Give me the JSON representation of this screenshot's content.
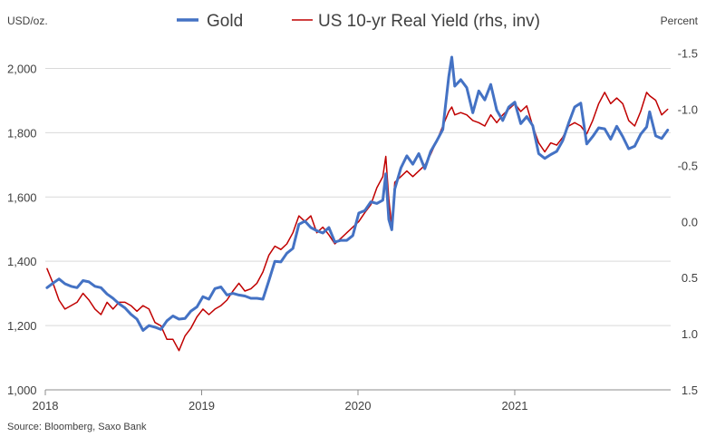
{
  "chart_data": {
    "type": "line",
    "title": "",
    "left_unit": "USD/oz.",
    "right_unit": "Percent",
    "source": "Source: Bloomberg, Saxo Bank",
    "x_ticks": [
      "2018",
      "2019",
      "2020",
      "2021"
    ],
    "y_left": {
      "ticks": [
        "1,000",
        "1,200",
        "1,400",
        "1,600",
        "1,800",
        "2,000"
      ],
      "tick_values": [
        1000,
        1200,
        1400,
        1600,
        1800,
        2000
      ],
      "ylim": [
        1000,
        2100
      ]
    },
    "y_right": {
      "ticks": [
        "-1.5",
        "-1.0",
        "-0.5",
        "0.0",
        "0.5",
        "1.0",
        "1.5"
      ],
      "tick_values": [
        -1.5,
        -1.0,
        -0.5,
        0.0,
        0.5,
        1.0,
        1.5
      ],
      "ylim": [
        -1.65,
        1.5
      ],
      "inverted": true
    },
    "xlim": [
      "2018-01-01",
      "2021-12-31"
    ],
    "grid": "horizontal",
    "legend_position": "top",
    "series": [
      {
        "name": "Gold",
        "axis": "left",
        "color": "#4472c4",
        "points": [
          [
            "2018-01-05",
            1318
          ],
          [
            "2018-01-19",
            1332
          ],
          [
            "2018-02-02",
            1345
          ],
          [
            "2018-02-16",
            1330
          ],
          [
            "2018-03-02",
            1322
          ],
          [
            "2018-03-16",
            1318
          ],
          [
            "2018-03-30",
            1340
          ],
          [
            "2018-04-13",
            1336
          ],
          [
            "2018-04-27",
            1322
          ],
          [
            "2018-05-11",
            1318
          ],
          [
            "2018-05-25",
            1298
          ],
          [
            "2018-06-08",
            1285
          ],
          [
            "2018-06-22",
            1268
          ],
          [
            "2018-07-06",
            1255
          ],
          [
            "2018-07-20",
            1235
          ],
          [
            "2018-08-03",
            1220
          ],
          [
            "2018-08-17",
            1185
          ],
          [
            "2018-08-31",
            1200
          ],
          [
            "2018-09-14",
            1195
          ],
          [
            "2018-09-28",
            1188
          ],
          [
            "2018-10-12",
            1215
          ],
          [
            "2018-10-26",
            1230
          ],
          [
            "2018-11-09",
            1220
          ],
          [
            "2018-11-23",
            1222
          ],
          [
            "2018-12-07",
            1245
          ],
          [
            "2018-12-21",
            1258
          ],
          [
            "2019-01-04",
            1290
          ],
          [
            "2019-01-18",
            1282
          ],
          [
            "2019-02-01",
            1315
          ],
          [
            "2019-02-15",
            1320
          ],
          [
            "2019-03-01",
            1295
          ],
          [
            "2019-03-15",
            1300
          ],
          [
            "2019-03-29",
            1295
          ],
          [
            "2019-04-12",
            1292
          ],
          [
            "2019-04-26",
            1285
          ],
          [
            "2019-05-10",
            1285
          ],
          [
            "2019-05-24",
            1282
          ],
          [
            "2019-06-07",
            1340
          ],
          [
            "2019-06-21",
            1400
          ],
          [
            "2019-07-05",
            1398
          ],
          [
            "2019-07-19",
            1425
          ],
          [
            "2019-08-02",
            1440
          ],
          [
            "2019-08-16",
            1515
          ],
          [
            "2019-08-30",
            1525
          ],
          [
            "2019-09-13",
            1505
          ],
          [
            "2019-09-27",
            1495
          ],
          [
            "2019-10-11",
            1488
          ],
          [
            "2019-10-25",
            1505
          ],
          [
            "2019-11-08",
            1460
          ],
          [
            "2019-11-22",
            1465
          ],
          [
            "2019-12-06",
            1465
          ],
          [
            "2019-12-20",
            1480
          ],
          [
            "2020-01-03",
            1550
          ],
          [
            "2020-01-17",
            1558
          ],
          [
            "2020-01-31",
            1585
          ],
          [
            "2020-02-14",
            1580
          ],
          [
            "2020-02-28",
            1590
          ],
          [
            "2020-03-06",
            1672
          ],
          [
            "2020-03-13",
            1530
          ],
          [
            "2020-03-20",
            1498
          ],
          [
            "2020-03-27",
            1625
          ],
          [
            "2020-04-10",
            1690
          ],
          [
            "2020-04-24",
            1728
          ],
          [
            "2020-05-08",
            1702
          ],
          [
            "2020-05-22",
            1735
          ],
          [
            "2020-06-05",
            1688
          ],
          [
            "2020-06-19",
            1742
          ],
          [
            "2020-07-03",
            1775
          ],
          [
            "2020-07-17",
            1810
          ],
          [
            "2020-07-31",
            1975
          ],
          [
            "2020-08-07",
            2035
          ],
          [
            "2020-08-14",
            1945
          ],
          [
            "2020-08-28",
            1965
          ],
          [
            "2020-09-11",
            1940
          ],
          [
            "2020-09-25",
            1862
          ],
          [
            "2020-10-09",
            1930
          ],
          [
            "2020-10-23",
            1902
          ],
          [
            "2020-11-06",
            1950
          ],
          [
            "2020-11-20",
            1870
          ],
          [
            "2020-12-04",
            1838
          ],
          [
            "2020-12-18",
            1880
          ],
          [
            "2021-01-01",
            1895
          ],
          [
            "2021-01-15",
            1828
          ],
          [
            "2021-01-29",
            1850
          ],
          [
            "2021-02-12",
            1822
          ],
          [
            "2021-02-26",
            1735
          ],
          [
            "2021-03-12",
            1720
          ],
          [
            "2021-03-26",
            1732
          ],
          [
            "2021-04-09",
            1742
          ],
          [
            "2021-04-23",
            1775
          ],
          [
            "2021-05-07",
            1830
          ],
          [
            "2021-05-21",
            1880
          ],
          [
            "2021-06-04",
            1892
          ],
          [
            "2021-06-18",
            1765
          ],
          [
            "2021-07-02",
            1788
          ],
          [
            "2021-07-16",
            1815
          ],
          [
            "2021-07-30",
            1812
          ],
          [
            "2021-08-13",
            1780
          ],
          [
            "2021-08-27",
            1820
          ],
          [
            "2021-09-10",
            1788
          ],
          [
            "2021-09-24",
            1750
          ],
          [
            "2021-10-08",
            1758
          ],
          [
            "2021-10-22",
            1795
          ],
          [
            "2021-11-05",
            1818
          ],
          [
            "2021-11-12",
            1865
          ],
          [
            "2021-11-26",
            1790
          ],
          [
            "2021-12-10",
            1782
          ],
          [
            "2021-12-24",
            1808
          ]
        ]
      },
      {
        "name": "US 10-yr Real Yield (rhs, inv)",
        "axis": "right",
        "color": "#c00000",
        "points": [
          [
            "2018-01-05",
            0.42
          ],
          [
            "2018-01-19",
            0.55
          ],
          [
            "2018-02-02",
            0.7
          ],
          [
            "2018-02-16",
            0.78
          ],
          [
            "2018-03-02",
            0.75
          ],
          [
            "2018-03-16",
            0.72
          ],
          [
            "2018-03-30",
            0.64
          ],
          [
            "2018-04-13",
            0.7
          ],
          [
            "2018-04-27",
            0.78
          ],
          [
            "2018-05-11",
            0.83
          ],
          [
            "2018-05-25",
            0.72
          ],
          [
            "2018-06-08",
            0.78
          ],
          [
            "2018-06-22",
            0.72
          ],
          [
            "2018-07-06",
            0.72
          ],
          [
            "2018-07-20",
            0.75
          ],
          [
            "2018-08-03",
            0.8
          ],
          [
            "2018-08-17",
            0.75
          ],
          [
            "2018-08-31",
            0.78
          ],
          [
            "2018-09-14",
            0.9
          ],
          [
            "2018-09-28",
            0.93
          ],
          [
            "2018-10-12",
            1.05
          ],
          [
            "2018-10-26",
            1.05
          ],
          [
            "2018-11-09",
            1.15
          ],
          [
            "2018-11-23",
            1.02
          ],
          [
            "2018-12-07",
            0.95
          ],
          [
            "2018-12-21",
            0.85
          ],
          [
            "2019-01-04",
            0.78
          ],
          [
            "2019-01-18",
            0.83
          ],
          [
            "2019-02-01",
            0.78
          ],
          [
            "2019-02-15",
            0.75
          ],
          [
            "2019-03-01",
            0.7
          ],
          [
            "2019-03-15",
            0.62
          ],
          [
            "2019-03-29",
            0.55
          ],
          [
            "2019-04-12",
            0.62
          ],
          [
            "2019-04-26",
            0.6
          ],
          [
            "2019-05-10",
            0.55
          ],
          [
            "2019-05-24",
            0.45
          ],
          [
            "2019-06-07",
            0.3
          ],
          [
            "2019-06-21",
            0.22
          ],
          [
            "2019-07-05",
            0.25
          ],
          [
            "2019-07-19",
            0.2
          ],
          [
            "2019-08-02",
            0.1
          ],
          [
            "2019-08-16",
            -0.05
          ],
          [
            "2019-08-30",
            0.0
          ],
          [
            "2019-09-13",
            -0.05
          ],
          [
            "2019-09-27",
            0.1
          ],
          [
            "2019-10-11",
            0.05
          ],
          [
            "2019-10-25",
            0.12
          ],
          [
            "2019-11-08",
            0.2
          ],
          [
            "2019-11-22",
            0.15
          ],
          [
            "2019-12-06",
            0.1
          ],
          [
            "2019-12-20",
            0.05
          ],
          [
            "2020-01-03",
            0.0
          ],
          [
            "2020-01-17",
            -0.08
          ],
          [
            "2020-01-31",
            -0.15
          ],
          [
            "2020-02-14",
            -0.3
          ],
          [
            "2020-02-28",
            -0.4
          ],
          [
            "2020-03-06",
            -0.58
          ],
          [
            "2020-03-13",
            -0.2
          ],
          [
            "2020-03-20",
            0.05
          ],
          [
            "2020-03-27",
            -0.35
          ],
          [
            "2020-04-10",
            -0.4
          ],
          [
            "2020-04-24",
            -0.45
          ],
          [
            "2020-05-08",
            -0.4
          ],
          [
            "2020-05-22",
            -0.45
          ],
          [
            "2020-06-05",
            -0.5
          ],
          [
            "2020-06-19",
            -0.6
          ],
          [
            "2020-07-03",
            -0.72
          ],
          [
            "2020-07-17",
            -0.85
          ],
          [
            "2020-07-31",
            -0.98
          ],
          [
            "2020-08-07",
            -1.02
          ],
          [
            "2020-08-14",
            -0.95
          ],
          [
            "2020-08-28",
            -0.97
          ],
          [
            "2020-09-11",
            -0.95
          ],
          [
            "2020-09-25",
            -0.9
          ],
          [
            "2020-10-09",
            -0.88
          ],
          [
            "2020-10-23",
            -0.85
          ],
          [
            "2020-11-06",
            -0.95
          ],
          [
            "2020-11-20",
            -0.88
          ],
          [
            "2020-12-04",
            -0.95
          ],
          [
            "2020-12-18",
            -1.0
          ],
          [
            "2021-01-01",
            -1.05
          ],
          [
            "2021-01-15",
            -0.98
          ],
          [
            "2021-01-29",
            -1.03
          ],
          [
            "2021-02-12",
            -0.85
          ],
          [
            "2021-02-26",
            -0.7
          ],
          [
            "2021-03-12",
            -0.62
          ],
          [
            "2021-03-26",
            -0.7
          ],
          [
            "2021-04-09",
            -0.68
          ],
          [
            "2021-04-23",
            -0.75
          ],
          [
            "2021-05-07",
            -0.85
          ],
          [
            "2021-05-21",
            -0.88
          ],
          [
            "2021-06-04",
            -0.85
          ],
          [
            "2021-06-18",
            -0.78
          ],
          [
            "2021-07-02",
            -0.9
          ],
          [
            "2021-07-16",
            -1.05
          ],
          [
            "2021-07-30",
            -1.15
          ],
          [
            "2021-08-13",
            -1.05
          ],
          [
            "2021-08-27",
            -1.1
          ],
          [
            "2021-09-10",
            -1.05
          ],
          [
            "2021-09-24",
            -0.9
          ],
          [
            "2021-10-08",
            -0.85
          ],
          [
            "2021-10-22",
            -0.98
          ],
          [
            "2021-11-05",
            -1.15
          ],
          [
            "2021-11-12",
            -1.12
          ],
          [
            "2021-11-26",
            -1.08
          ],
          [
            "2021-12-10",
            -0.95
          ],
          [
            "2021-12-24",
            -1.0
          ]
        ]
      }
    ]
  }
}
